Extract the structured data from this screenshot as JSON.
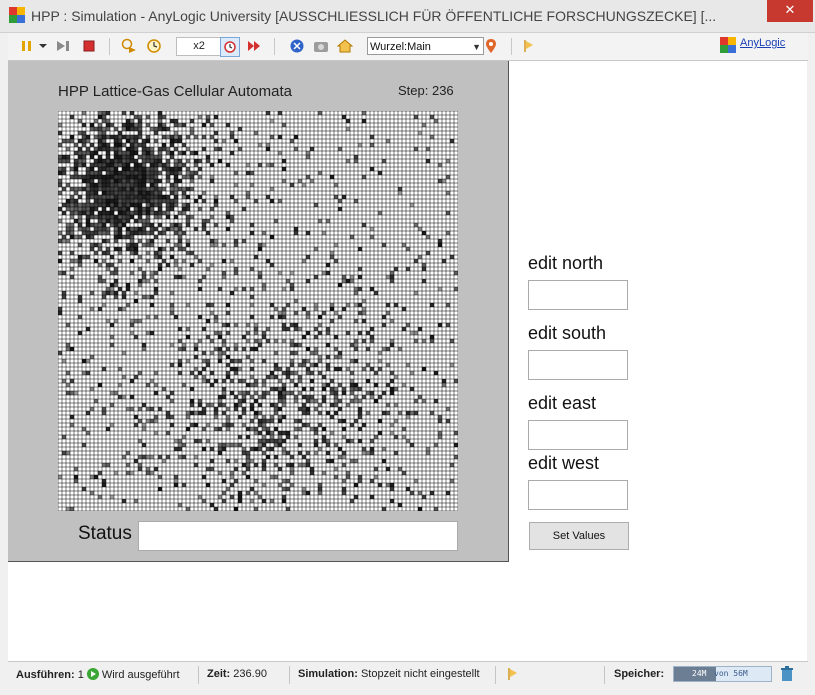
{
  "window": {
    "title": "HPP : Simulation - AnyLogic University  [AUSSCHLIESSLICH FÜR ÖFFENTLICHE FORSCHUNGSZECKE] [...",
    "close_glyph": "✕"
  },
  "toolbar": {
    "speed": "x2",
    "experiment_selector": "Wurzel:Main",
    "brand_link": "AnyLogic"
  },
  "model": {
    "title": "HPP Lattice-Gas Cellular Automata",
    "step": "Step: 236",
    "status_label": "Status",
    "status_value": "",
    "edit_north_label": "edit north",
    "edit_south_label": "edit south",
    "edit_east_label": "edit east",
    "edit_west_label": "edit west",
    "edit_north_value": "",
    "edit_south_value": "",
    "edit_east_value": "",
    "edit_west_value": "",
    "set_button": "Set Values"
  },
  "statusbar": {
    "run_label": "Ausführen:",
    "run_count": "1",
    "run_state": "Wird ausgeführt",
    "time_label": "Zeit:",
    "time_value": "236.90",
    "sim_label": "Simulation:",
    "sim_value": "Stopzeit nicht eingestellt",
    "memory_label": "Speicher:",
    "memory_used": "24M",
    "memory_total": "von 56M",
    "memory_fraction": 0.43
  },
  "colors": {
    "accent_close": "#c7392f",
    "anylogic_link": "#1a3fb5",
    "run_green": "#3aa635",
    "panel_gray": "#c0c0c0"
  },
  "icons": [
    "app-icon",
    "pause-icon",
    "dropdown-arrow-icon",
    "step-icon",
    "stop-icon",
    "run-until-icon",
    "time-icon",
    "realtime-icon",
    "fast-forward-icon",
    "navigate-icon",
    "camera-icon",
    "home-icon",
    "locate-icon",
    "flag-icon",
    "anylogic-logo-icon",
    "play-icon",
    "trash-icon"
  ]
}
